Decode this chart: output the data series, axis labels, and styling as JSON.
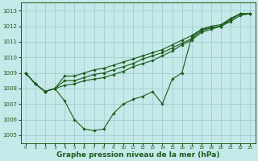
{
  "background_color": "#c5e8e8",
  "grid_color": "#9ecfcf",
  "line_color": "#1a5c1a",
  "marker_color": "#1a5c1a",
  "xlabel": "Graphe pression niveau de la mer (hPa)",
  "xlabel_fontsize": 6.5,
  "ylim": [
    1004.5,
    1013.5
  ],
  "xlim": [
    -0.5,
    23.5
  ],
  "yticks": [
    1005,
    1006,
    1007,
    1008,
    1009,
    1010,
    1011,
    1012,
    1013
  ],
  "xticks": [
    0,
    1,
    2,
    3,
    4,
    5,
    6,
    7,
    8,
    9,
    10,
    11,
    12,
    13,
    14,
    15,
    16,
    17,
    18,
    19,
    20,
    21,
    22,
    23
  ],
  "series1_x": [
    0,
    1,
    2,
    3,
    4,
    5,
    6,
    7,
    8,
    9,
    10,
    11,
    12,
    13,
    14,
    15,
    16,
    17,
    18,
    19,
    20,
    21,
    22,
    23
  ],
  "series1": [
    1009.0,
    1008.3,
    1007.8,
    1008.0,
    1007.2,
    1006.0,
    1005.4,
    1005.3,
    1005.4,
    1006.4,
    1007.0,
    1007.3,
    1007.5,
    1007.8,
    1007.0,
    1008.6,
    1009.0,
    1011.3,
    1011.8,
    1011.9,
    1012.0,
    1012.5,
    1012.8,
    1012.8
  ],
  "series2_x": [
    0,
    1,
    2,
    3,
    4,
    5,
    6,
    7,
    8,
    9,
    10,
    11,
    12,
    13,
    14,
    15,
    16,
    17,
    18,
    19,
    20,
    21,
    22,
    23
  ],
  "series2": [
    1009.0,
    1008.3,
    1007.8,
    1008.0,
    1008.8,
    1008.8,
    1009.0,
    1009.2,
    1009.3,
    1009.5,
    1009.7,
    1009.9,
    1010.1,
    1010.3,
    1010.5,
    1010.8,
    1011.1,
    1011.4,
    1011.8,
    1012.0,
    1012.1,
    1012.5,
    1012.8,
    1012.8
  ],
  "series3_x": [
    0,
    1,
    2,
    3,
    4,
    5,
    6,
    7,
    8,
    9,
    10,
    11,
    12,
    13,
    14,
    15,
    16,
    17,
    18,
    19,
    20,
    21,
    22,
    23
  ],
  "series3": [
    1009.0,
    1008.3,
    1007.8,
    1008.0,
    1008.5,
    1008.5,
    1008.7,
    1008.9,
    1009.0,
    1009.2,
    1009.4,
    1009.6,
    1009.9,
    1010.1,
    1010.3,
    1010.6,
    1010.9,
    1011.2,
    1011.7,
    1011.9,
    1012.0,
    1012.4,
    1012.8,
    1012.8
  ],
  "series4_x": [
    0,
    1,
    2,
    3,
    4,
    5,
    6,
    7,
    8,
    9,
    10,
    11,
    12,
    13,
    14,
    15,
    16,
    17,
    18,
    19,
    20,
    21,
    22,
    23
  ],
  "series4": [
    1009.0,
    1008.3,
    1007.8,
    1008.0,
    1008.2,
    1008.3,
    1008.5,
    1008.6,
    1008.7,
    1008.9,
    1009.1,
    1009.4,
    1009.6,
    1009.8,
    1010.1,
    1010.4,
    1010.8,
    1011.1,
    1011.6,
    1011.8,
    1012.0,
    1012.3,
    1012.7,
    1012.8
  ]
}
